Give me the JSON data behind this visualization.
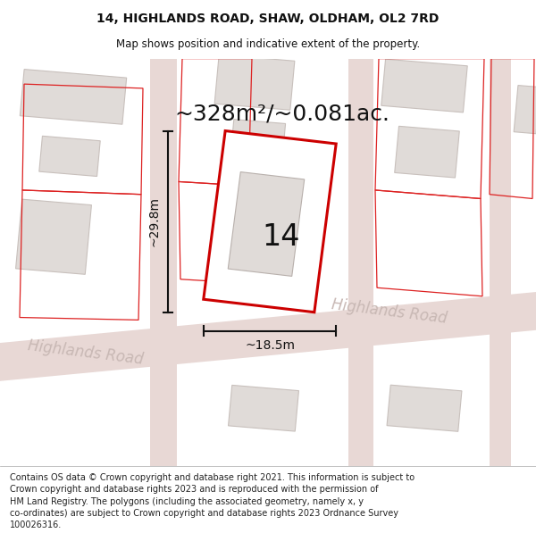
{
  "title": "14, HIGHLANDS ROAD, SHAW, OLDHAM, OL2 7RD",
  "subtitle": "Map shows position and indicative extent of the property.",
  "area_text": "~328m²/~0.081ac.",
  "property_number": "14",
  "width_label": "~18.5m",
  "height_label": "~29.8m",
  "road_label1": "Highlands Road",
  "road_label2": "Highlands Road",
  "footer_text": "Contains OS data © Crown copyright and database right 2021. This information is subject to\nCrown copyright and database rights 2023 and is reproduced with the permission of\nHM Land Registry. The polygons (including the associated geometry, namely x, y\nco-ordinates) are subject to Crown copyright and database rights 2023 Ordnance Survey\n100026316.",
  "map_bg": "#f2eeec",
  "footer_bg": "#ffffff",
  "road_fill": "#e8d8d5",
  "building_fill": "#e0dbd8",
  "building_edge": "#c8c0bc",
  "red_outline": "#dd2222",
  "property_fill": "#ffffff",
  "property_edge": "#cc0000",
  "dim_color": "#111111",
  "text_color": "#111111",
  "road_text_color": "#c8b8b4",
  "title_size": 10,
  "subtitle_size": 8.5,
  "area_text_size": 18,
  "number_size": 24,
  "dim_label_size": 10,
  "road_label_size": 12
}
